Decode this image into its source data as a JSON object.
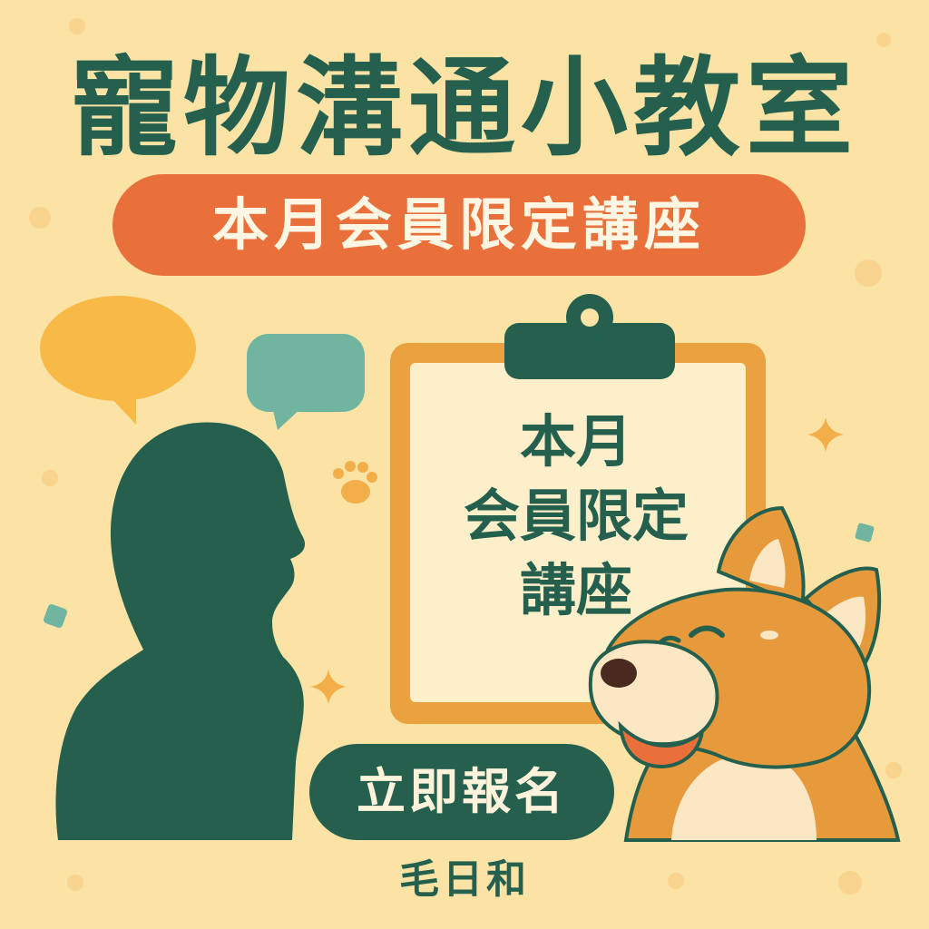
{
  "poster": {
    "title": "寵物溝通小教室",
    "subtitle": "本月会員限定講座",
    "clipboard_lines": [
      "本月",
      "会員限定",
      "講座"
    ],
    "cta_label": "立即報名",
    "brand_name": "毛日和"
  },
  "icons": {
    "speech_bubble_yellow": "speech-bubble-icon",
    "speech_bubble_teal": "speech-bubble-icon",
    "paw": "paw-print-icon",
    "sparkle": "sparkle-icon"
  },
  "colors": {
    "background": "#fbe3a6",
    "primary_green": "#25604e",
    "accent_orange": "#e9703b",
    "clipboard_frame": "#eba140",
    "clipboard_paper": "#fdefca",
    "bubble_yellow": "#f8b947",
    "bubble_teal": "#6fb5a0",
    "dog_fur": "#e79a3c"
  }
}
